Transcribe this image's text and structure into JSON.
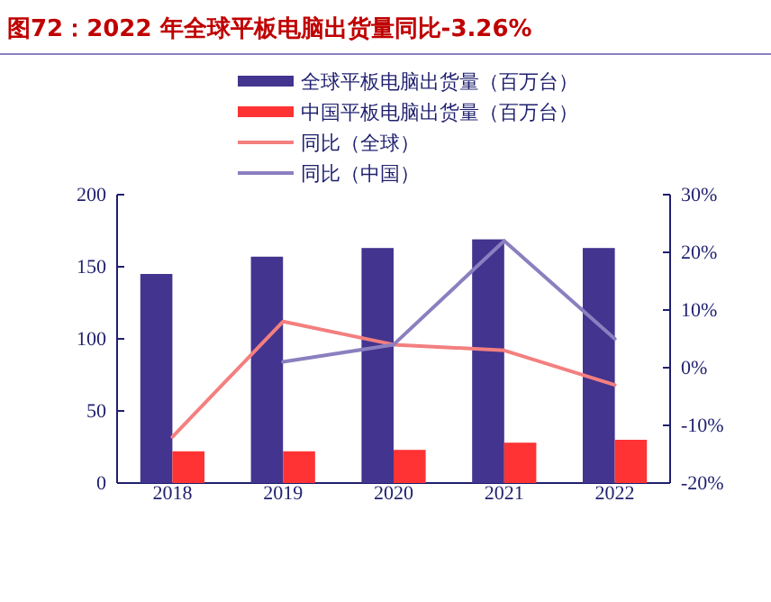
{
  "chart_data": {
    "type": "bar",
    "title": "图72：2022 年全球平板电脑出货量同比-3.26%",
    "categories": [
      "2018",
      "2019",
      "2020",
      "2021",
      "2022"
    ],
    "series": [
      {
        "name": "全球平板电脑出货量（百万台）",
        "color": "#43348f",
        "values": [
          145,
          157,
          163,
          169,
          163
        ]
      },
      {
        "name": "中国平板电脑出货量（百万台）",
        "color": "#ff3333",
        "values": [
          22,
          22,
          23,
          28,
          30
        ]
      },
      {
        "name": "同比（全球）",
        "type": "line",
        "axis": "y2",
        "color": "#f47f7f",
        "values": [
          -12,
          8,
          4,
          3,
          -3
        ]
      },
      {
        "name": "同比（中国）",
        "type": "line",
        "axis": "y2",
        "color": "#8b7fbf",
        "values": [
          null,
          1,
          4,
          22,
          5
        ]
      }
    ],
    "ylim": [
      0,
      200
    ],
    "yticks": [
      0,
      50,
      100,
      150,
      200
    ],
    "y2lim": [
      -20,
      30
    ],
    "y2ticks": [
      {
        "value": -20,
        "label": "-20%"
      },
      {
        "value": -10,
        "label": "-10%"
      },
      {
        "value": 0,
        "label": "0%"
      },
      {
        "value": 10,
        "label": "10%"
      },
      {
        "value": 20,
        "label": "20%"
      },
      {
        "value": 30,
        "label": "30%"
      }
    ],
    "legend": "top",
    "grid": false
  }
}
